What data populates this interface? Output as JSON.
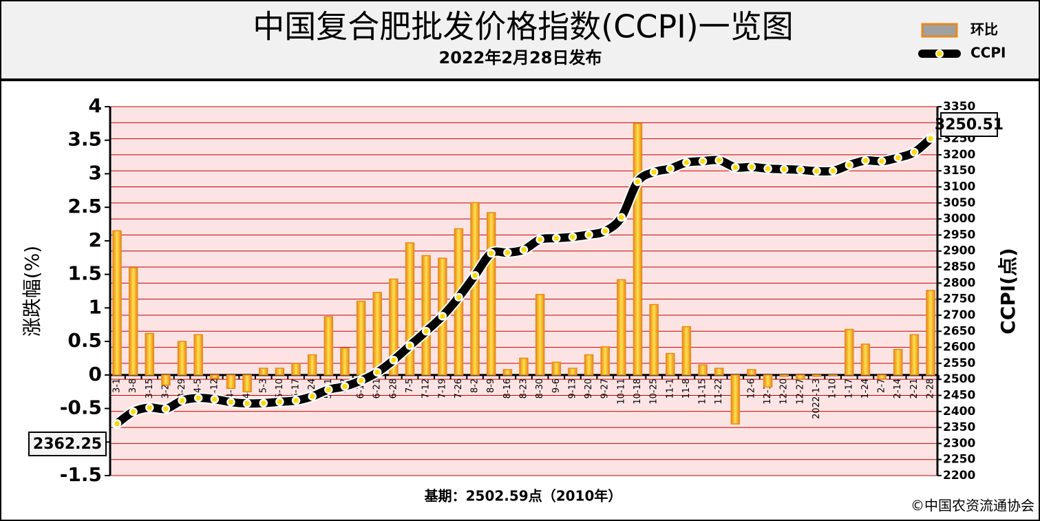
{
  "chart_data": {
    "type": "bar",
    "title": "中国复合肥批发价格指数(CCPI)一览图",
    "subtitle": "2022年2月28日发布",
    "y_label": "涨跌幅(%)",
    "y2_label": "CCPI(点)",
    "note": "基期：2502.59点（2010年）",
    "source": "©中国农资流通协会",
    "categories": [
      "3-1",
      "3-8",
      "3-15",
      "3-22",
      "3-29",
      "4-5",
      "4-12",
      "4-19",
      "4-26",
      "5-3",
      "5-10",
      "5-17",
      "5-24",
      "5-31",
      "6-7",
      "6-14",
      "6-21",
      "6-28",
      "7-5",
      "7-12",
      "7-19",
      "7-26",
      "8-2",
      "8-9",
      "8-16",
      "8-23",
      "8-30",
      "9-6",
      "9-13",
      "9-20",
      "9-27",
      "10-11",
      "10-18",
      "10-25",
      "11-1",
      "11-8",
      "11-15",
      "11-22",
      "11-29",
      "12-6",
      "12-13",
      "12-20",
      "12-27",
      "2022-1-3",
      "1-10",
      "1-17",
      "1-24",
      "2-7",
      "2-14",
      "2-21",
      "2-28"
    ],
    "series": [
      {
        "name": "环比",
        "type": "bar",
        "color": "#e8891c",
        "values": [
          2.15,
          1.6,
          0.62,
          -0.15,
          0.5,
          0.6,
          -0.05,
          -0.2,
          -0.25,
          0.1,
          0.1,
          0.17,
          0.3,
          0.87,
          0.4,
          1.1,
          1.23,
          1.43,
          1.97,
          1.78,
          1.74,
          2.18,
          2.57,
          2.42,
          0.08,
          0.25,
          1.2,
          0.19,
          0.1,
          0.3,
          0.42,
          1.42,
          3.75,
          1.05,
          0.32,
          0.72,
          0.15,
          0.1,
          -0.73,
          0.08,
          -0.18,
          -0.02,
          -0.06,
          -0.02,
          0,
          0.68,
          0.46,
          -0.06,
          0.38,
          0.6,
          1.26
        ]
      },
      {
        "name": "CCPI",
        "type": "line",
        "axis": "y2",
        "color": "#000000",
        "values": [
          2362.25,
          2399,
          2412,
          2408,
          2434,
          2442,
          2438,
          2429,
          2425,
          2426,
          2430,
          2434,
          2447,
          2468,
          2478,
          2496,
          2522,
          2560,
          2605,
          2650,
          2697,
          2756,
          2824,
          2893,
          2895,
          2904,
          2936,
          2940,
          2944,
          2951,
          2962,
          3005,
          3116,
          3146,
          3157,
          3176,
          3180,
          3183,
          3161,
          3162,
          3157,
          3155,
          3153,
          3149,
          3150,
          3168,
          3182,
          3180,
          3191,
          3208,
          3250.51
        ]
      }
    ],
    "ylim": [
      -1.5,
      4
    ],
    "yticks": [
      -1.5,
      -1,
      -0.5,
      0,
      0.5,
      1,
      1.5,
      2,
      2.5,
      3,
      3.5,
      4
    ],
    "y2lim": [
      2200,
      3350
    ],
    "y2ticks": [
      2200,
      2250,
      2300,
      2350,
      2400,
      2450,
      2500,
      2550,
      2600,
      2650,
      2700,
      2750,
      2800,
      2850,
      2900,
      2950,
      3000,
      3050,
      3100,
      3150,
      3200,
      3250,
      3300,
      3350
    ],
    "grid": true
  }
}
